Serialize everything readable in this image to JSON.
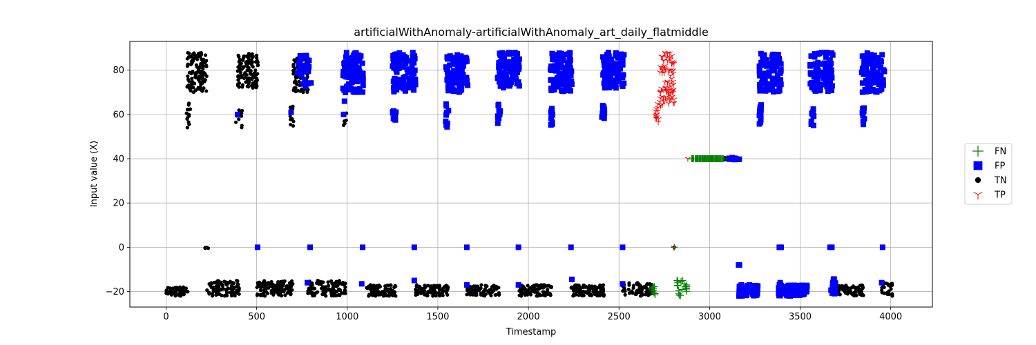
{
  "chart_data": {
    "type": "scatter",
    "title": "artificialWithAnomaly-artificialWithAnomaly_art_daily_flatmiddle",
    "xlabel": "Timestamp",
    "ylabel": "Input value (X)",
    "xlim": [
      -200,
      4230
    ],
    "ylim": [
      -27,
      93
    ],
    "x_ticks": [
      0,
      500,
      1000,
      1500,
      2000,
      2500,
      3000,
      3500,
      4000
    ],
    "y_ticks": [
      -20,
      0,
      20,
      40,
      60,
      80
    ],
    "x_tick_labels": [
      "0",
      "500",
      "1000",
      "1500",
      "2000",
      "2500",
      "3000",
      "3500",
      "4000"
    ],
    "y_tick_labels": [
      "−20",
      "0",
      "20",
      "40",
      "60",
      "80"
    ],
    "grid": true,
    "legend_position": "outside-right",
    "legend": [
      {
        "label": "FN",
        "marker": "plus",
        "color": "#008000"
      },
      {
        "label": "FP",
        "marker": "square",
        "color": "#0000ff"
      },
      {
        "label": "TN",
        "marker": "circle",
        "color": "#000000"
      },
      {
        "label": "TP",
        "marker": "tri_down",
        "color": "#ff0000"
      }
    ],
    "series": [
      {
        "name": "TN",
        "marker": "circle",
        "color": "#000000",
        "clusters": [
          {
            "x": [
              0,
              120
            ],
            "y": [
              -22,
              -18
            ],
            "n": 60
          },
          {
            "x": [
              110,
              135
            ],
            "y": [
              54,
              66
            ],
            "n": 14
          },
          {
            "x": [
              115,
              225
            ],
            "y": [
              70,
              88
            ],
            "n": 120
          },
          {
            "x": [
              215,
              235
            ],
            "y": [
              -0.5,
              0.5
            ],
            "n": 5
          },
          {
            "x": [
              225,
              410
            ],
            "y": [
              -22,
              -15
            ],
            "n": 90
          },
          {
            "x": [
              385,
              420
            ],
            "y": [
              54,
              62
            ],
            "n": 12
          },
          {
            "x": [
              395,
              510
            ],
            "y": [
              72,
              88
            ],
            "n": 110
          },
          {
            "x": [
              500,
              700
            ],
            "y": [
              -22,
              -15
            ],
            "n": 110
          },
          {
            "x": [
              685,
              710
            ],
            "y": [
              54,
              64
            ],
            "n": 12
          },
          {
            "x": [
              700,
              790
            ],
            "y": [
              70,
              86
            ],
            "n": 90
          },
          {
            "x": [
              780,
              990
            ],
            "y": [
              -22,
              -15
            ],
            "n": 110
          },
          {
            "x": [
              980,
              1000
            ],
            "y": [
              55,
              62
            ],
            "n": 6
          },
          {
            "x": [
              1100,
              1270
            ],
            "y": [
              -22,
              -17
            ],
            "n": 90
          },
          {
            "x": [
              1260,
              1275
            ],
            "y": [
              58,
              62
            ],
            "n": 4
          },
          {
            "x": [
              1375,
              1560
            ],
            "y": [
              -22,
              -17
            ],
            "n": 90
          },
          {
            "x": [
              1660,
              1840
            ],
            "y": [
              -22,
              -17
            ],
            "n": 90
          },
          {
            "x": [
              1950,
              2130
            ],
            "y": [
              -22,
              -17
            ],
            "n": 90
          },
          {
            "x": [
              2235,
              2420
            ],
            "y": [
              -22,
              -17
            ],
            "n": 90
          },
          {
            "x": [
              2510,
              2690
            ],
            "y": [
              -22,
              -16
            ],
            "n": 80
          },
          {
            "x": [
              3075,
              3095
            ],
            "y": [
              39.5,
              40.5
            ],
            "n": 6
          },
          {
            "x": [
              3710,
              3850
            ],
            "y": [
              -22,
              -17
            ],
            "n": 70
          },
          {
            "x": [
              3950,
              4010
            ],
            "y": [
              -22,
              -16
            ],
            "n": 30
          }
        ],
        "points": [
          [
            2805,
            0
          ],
          [
            3958,
            0
          ],
          [
            1370,
            0
          ],
          [
            508,
            0
          ]
        ]
      },
      {
        "name": "FP",
        "marker": "square",
        "color": "#0000ff",
        "clusters": [
          {
            "x": [
              720,
              800
            ],
            "y": [
              72,
              87
            ],
            "n": 30
          },
          {
            "x": [
              975,
              1090
            ],
            "y": [
              70,
              88
            ],
            "n": 90
          },
          {
            "x": [
              1250,
              1380
            ],
            "y": [
              70,
              88
            ],
            "n": 90
          },
          {
            "x": [
              1545,
              1665
            ],
            "y": [
              70,
              87
            ],
            "n": 90
          },
          {
            "x": [
              1830,
              1950
            ],
            "y": [
              72,
              88
            ],
            "n": 90
          },
          {
            "x": [
              2120,
              2240
            ],
            "y": [
              70,
              88
            ],
            "n": 90
          },
          {
            "x": [
              2410,
              2530
            ],
            "y": [
              72,
              88
            ],
            "n": 90
          },
          {
            "x": [
              3275,
              3395
            ],
            "y": [
              70,
              88
            ],
            "n": 90
          },
          {
            "x": [
              3555,
              3680
            ],
            "y": [
              70,
              88
            ],
            "n": 90
          },
          {
            "x": [
              3840,
              3965
            ],
            "y": [
              70,
              88
            ],
            "n": 90
          },
          {
            "x": [
              1540,
              1560
            ],
            "y": [
              54,
              65
            ],
            "n": 10
          },
          {
            "x": [
              1830,
              1845
            ],
            "y": [
              55,
              66
            ],
            "n": 10
          },
          {
            "x": [
              2120,
              2135
            ],
            "y": [
              55,
              63
            ],
            "n": 10
          },
          {
            "x": [
              2405,
              2420
            ],
            "y": [
              55,
              65
            ],
            "n": 10
          },
          {
            "x": [
              3275,
              3290
            ],
            "y": [
              55,
              65
            ],
            "n": 10
          },
          {
            "x": [
              3560,
              3575
            ],
            "y": [
              55,
              64
            ],
            "n": 10
          },
          {
            "x": [
              3840,
              3855
            ],
            "y": [
              55,
              63
            ],
            "n": 10
          },
          {
            "x": [
              1250,
              1270
            ],
            "y": [
              57,
              65
            ],
            "n": 8
          },
          {
            "x": [
              3160,
              3270
            ],
            "y": [
              -22,
              -17
            ],
            "n": 70
          },
          {
            "x": [
              3380,
              3540
            ],
            "y": [
              -22,
              -17
            ],
            "n": 100
          },
          {
            "x": [
              3670,
              3700
            ],
            "y": [
              -21,
              -14
            ],
            "n": 15
          },
          {
            "x": [
              3100,
              3165
            ],
            "y": [
              39.5,
              40.5
            ],
            "n": 14
          }
        ],
        "points": [
          [
            3160,
            -8
          ],
          [
            3165,
            -8
          ],
          [
            1370,
            -15
          ],
          [
            2240,
            -14.5
          ],
          [
            3390,
            -16
          ],
          [
            395,
            60
          ],
          [
            690,
            61
          ],
          [
            980,
            60
          ],
          [
            985,
            66
          ],
          [
            990,
            70
          ],
          [
            505,
            0
          ],
          [
            795,
            0
          ],
          [
            1085,
            0
          ],
          [
            1370,
            0
          ],
          [
            1660,
            0
          ],
          [
            1945,
            0
          ],
          [
            2235,
            0
          ],
          [
            2520,
            0
          ],
          [
            3385,
            0
          ],
          [
            3395,
            0
          ],
          [
            3665,
            0
          ],
          [
            3675,
            0
          ],
          [
            3955,
            0
          ],
          [
            780,
            -16
          ],
          [
            1080,
            -16.5
          ],
          [
            1660,
            -17
          ],
          [
            1945,
            -17
          ],
          [
            2520,
            -16.5
          ],
          [
            3680,
            -17
          ],
          [
            3950,
            -16
          ]
        ]
      },
      {
        "name": "FN",
        "marker": "plus",
        "color": "#008000",
        "clusters": [
          {
            "x": [
              2680,
              2700
            ],
            "y": [
              -22,
              -17
            ],
            "n": 10
          },
          {
            "x": [
              2820,
              2880
            ],
            "y": [
              -22,
              -15
            ],
            "n": 18
          },
          {
            "x": [
              2900,
              3080
            ],
            "y": [
              40,
              40
            ],
            "n": 90
          }
        ],
        "points": [
          [
            2805,
            0
          ],
          [
            2820,
            -15
          ],
          [
            2825,
            -16
          ]
        ]
      },
      {
        "name": "TP",
        "marker": "tri_down",
        "color": "#ff0000",
        "clusters": [
          {
            "x": [
              2725,
              2805
            ],
            "y": [
              64,
              88
            ],
            "n": 90
          },
          {
            "x": [
              2700,
              2720
            ],
            "y": [
              54,
              66
            ],
            "n": 14
          }
        ],
        "points": [
          [
            2880,
            40
          ],
          [
            2800,
            0
          ]
        ]
      }
    ]
  }
}
